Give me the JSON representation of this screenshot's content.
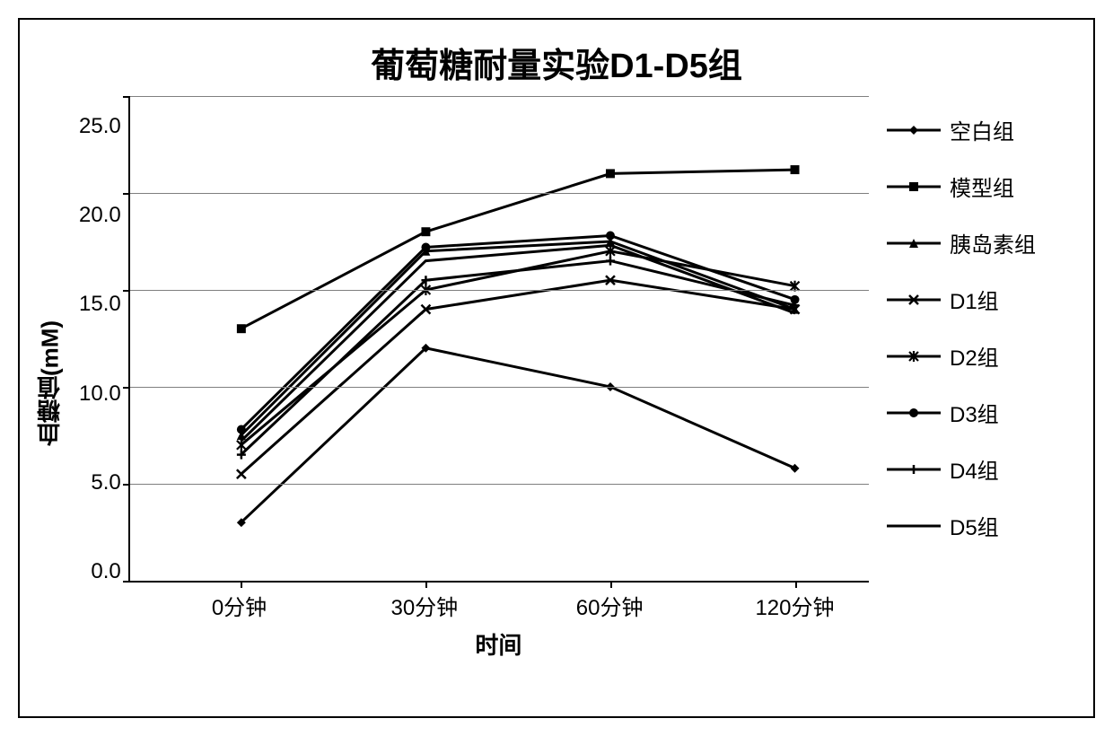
{
  "chart": {
    "type": "line",
    "title": "葡萄糖耐量实验D1-D5组",
    "title_fontsize": 38,
    "xlabel": "时间",
    "ylabel": "血糖值(mM)",
    "label_fontsize": 26,
    "tick_fontsize": 24,
    "legend_fontsize": 24,
    "background_color": "#ffffff",
    "border_color": "#000000",
    "grid_color": "#7f7f7f",
    "line_color": "#000000",
    "line_width": 3,
    "marker_size": 10,
    "ylim": [
      0,
      25
    ],
    "yticks": [
      0.0,
      5.0,
      10.0,
      15.0,
      20.0,
      25.0
    ],
    "ytick_labels": [
      "0.0",
      "5.0",
      "10.0",
      "15.0",
      "20.0",
      "25.0"
    ],
    "categories": [
      "0分钟",
      "30分钟",
      "60分钟",
      "120分钟"
    ],
    "category_positions_pct": [
      15,
      40,
      65,
      90
    ],
    "series": [
      {
        "name": "空白组",
        "marker": "diamond",
        "values": [
          3.0,
          12.0,
          10.0,
          5.8
        ]
      },
      {
        "name": "模型组",
        "marker": "square",
        "values": [
          13.0,
          18.0,
          21.0,
          21.2
        ]
      },
      {
        "name": "胰岛素组",
        "marker": "triangle",
        "values": [
          7.5,
          17.0,
          17.5,
          14.0
        ]
      },
      {
        "name": "D1组",
        "marker": "x",
        "values": [
          5.5,
          14.0,
          15.5,
          14.0
        ]
      },
      {
        "name": "D2组",
        "marker": "star",
        "values": [
          7.0,
          15.0,
          17.0,
          15.2
        ]
      },
      {
        "name": "D3组",
        "marker": "circle",
        "values": [
          7.8,
          17.2,
          17.8,
          14.5
        ]
      },
      {
        "name": "D4组",
        "marker": "plus",
        "values": [
          6.5,
          15.5,
          16.5,
          14.2
        ]
      },
      {
        "name": "D5组",
        "marker": "none",
        "values": [
          7.2,
          16.5,
          17.3,
          13.8
        ]
      }
    ]
  }
}
